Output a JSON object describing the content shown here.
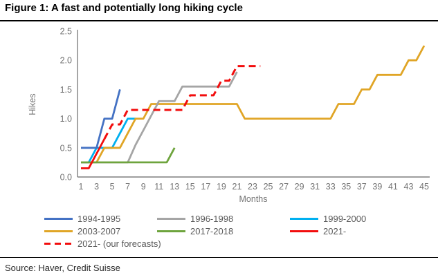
{
  "figure": {
    "title": "Figure 1: A fast and potentially long hiking cycle",
    "source": "Source: Haver, Credit Suisse"
  },
  "chart_data": {
    "type": "line",
    "title": "Figure 1: A fast and potentially long hiking cycle",
    "xlabel": "Months",
    "ylabel": "Hikes",
    "xlim": [
      1,
      45
    ],
    "ylim": [
      0.0,
      2.5
    ],
    "grid": false,
    "x_ticks": [
      "1",
      "3",
      "5",
      "7",
      "9",
      "11",
      "13",
      "15",
      "17",
      "19",
      "21",
      "23",
      "25",
      "27",
      "29",
      "31",
      "33",
      "35",
      "37",
      "39",
      "41",
      "43",
      "45"
    ],
    "y_ticks": [
      "0.0",
      "0.5",
      "1.0",
      "1.5",
      "2.0",
      "2.5"
    ],
    "axis_color": "#7f7f7f",
    "tick_label_color": "#737373",
    "series": [
      {
        "name": "1999-2000",
        "color": "#00B0F0",
        "dash": false,
        "start_month": 1,
        "values": [
          0.25,
          0.25,
          0.5,
          0.5,
          0.5,
          0.75,
          1.0,
          1.0
        ]
      },
      {
        "name": "2003-2007",
        "color": "#E0A526",
        "dash": false,
        "start_month": 1,
        "values": [
          0.25,
          0.25,
          0.25,
          0.5,
          0.5,
          0.5,
          0.75,
          1.0,
          1.0,
          1.25,
          1.25,
          1.25,
          1.25,
          1.25,
          1.25,
          1.25,
          1.25,
          1.25,
          1.25,
          1.25,
          1.25,
          1.0,
          1.0,
          1.0,
          1.0,
          1.0,
          1.0,
          1.0,
          1.0,
          1.0,
          1.0,
          1.0,
          1.0,
          1.25,
          1.25,
          1.25,
          1.5,
          1.5,
          1.75,
          1.75,
          1.75,
          1.75,
          2.0,
          2.0,
          2.25
        ]
      },
      {
        "name": "1996-1998",
        "color": "#A5A5A5",
        "dash": false,
        "start_month": 1,
        "values": [
          0.25,
          0.25,
          0.25,
          0.25,
          0.25,
          0.25,
          0.25,
          0.55,
          0.8,
          1.05,
          1.3,
          1.3,
          1.3,
          1.55,
          1.55,
          1.55,
          1.55,
          1.55,
          1.55,
          1.55,
          1.8
        ]
      },
      {
        "name": "2017-2018",
        "color": "#6EA43D",
        "dash": false,
        "start_month": 1,
        "values": [
          0.25,
          0.25,
          0.25,
          0.25,
          0.25,
          0.25,
          0.25,
          0.25,
          0.25,
          0.25,
          0.25,
          0.25,
          0.5
        ]
      },
      {
        "name": "1994-1995",
        "color": "#4472C4",
        "dash": false,
        "start_month": 1,
        "values": [
          0.5,
          0.5,
          0.5,
          1.0,
          1.0,
          1.5
        ]
      },
      {
        "name": "2021-",
        "color": "#F20D0D",
        "dash": false,
        "start_month": 1,
        "values": [
          0.15,
          0.15,
          0.4,
          0.65
        ]
      },
      {
        "name": "2021- (our forecasts)",
        "color": "#F20D0D",
        "dash": true,
        "start_month": 4,
        "values": [
          0.65,
          0.9,
          0.9,
          1.15,
          1.15,
          1.15,
          1.15,
          1.15,
          1.15,
          1.15,
          1.15,
          1.4,
          1.4,
          1.4,
          1.4,
          1.65,
          1.65,
          1.9,
          1.9,
          1.9,
          1.9
        ]
      }
    ],
    "legend": {
      "position": "bottom",
      "items": [
        {
          "label": "1994-1995",
          "color": "#4472C4",
          "dash": false
        },
        {
          "label": "1996-1998",
          "color": "#A5A5A5",
          "dash": false
        },
        {
          "label": "1999-2000",
          "color": "#00B0F0",
          "dash": false
        },
        {
          "label": "2003-2007",
          "color": "#E0A526",
          "dash": false
        },
        {
          "label": "2017-2018",
          "color": "#6EA43D",
          "dash": false
        },
        {
          "label": "2021-",
          "color": "#F20D0D",
          "dash": false
        },
        {
          "label": "2021- (our forecasts)",
          "color": "#F20D0D",
          "dash": true
        }
      ]
    }
  }
}
